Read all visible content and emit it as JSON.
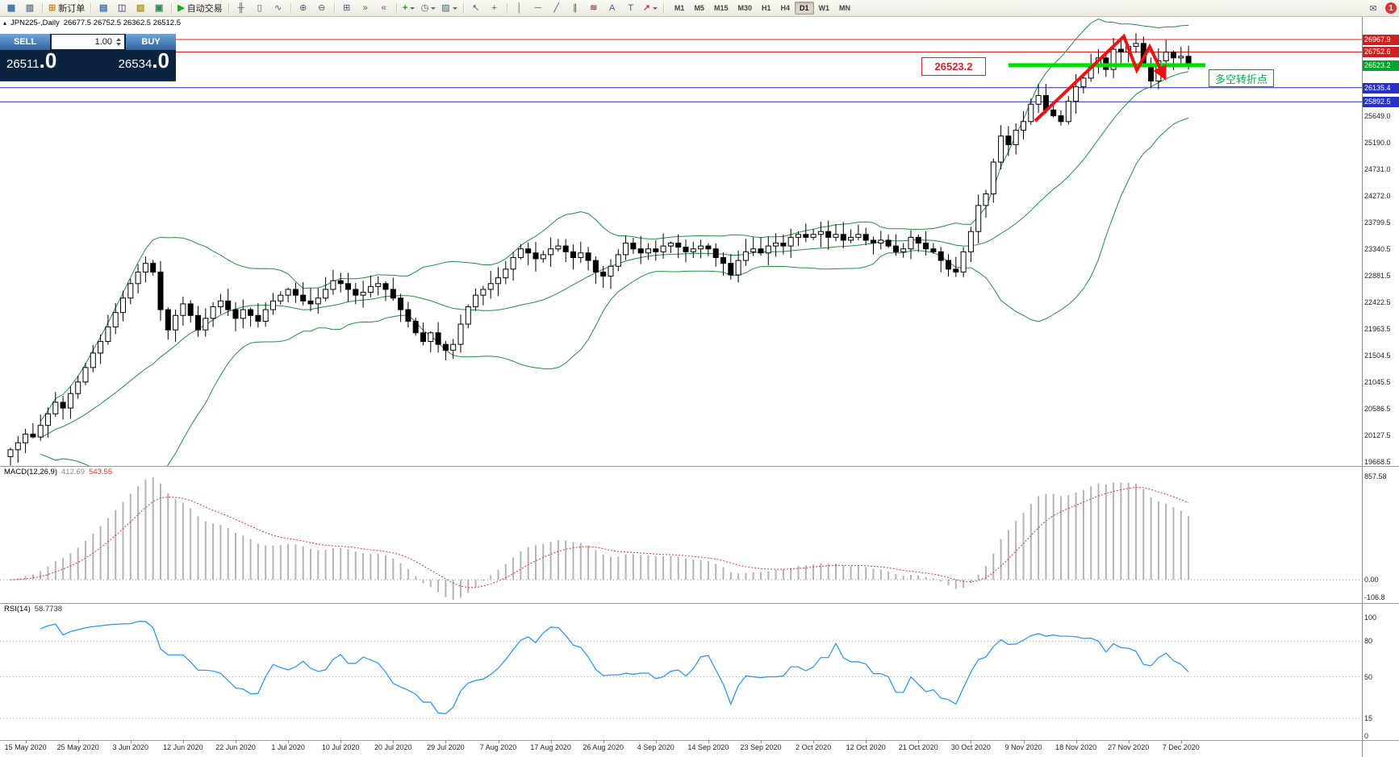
{
  "toolbar": {
    "items": [
      {
        "name": "new-chart-icon",
        "glyph": "▦",
        "glyph_color": "#3a6ea5"
      },
      {
        "name": "chart-profiles-icon",
        "glyph": "▥",
        "glyph_color": "#6a7a8a"
      },
      {
        "name": "separator"
      },
      {
        "name": "new-order-button",
        "glyph": "⊞",
        "glyph_color": "#c8881e",
        "label": "新订单"
      },
      {
        "name": "separator"
      },
      {
        "name": "market-watch-icon",
        "glyph": "▤",
        "glyph_color": "#3a6ea5"
      },
      {
        "name": "data-window-icon",
        "glyph": "◫",
        "glyph_color": "#7a5aa0"
      },
      {
        "name": "navigator-icon",
        "glyph": "▧",
        "glyph_color": "#b09a28"
      },
      {
        "name": "terminal-icon",
        "glyph": "▣",
        "glyph_color": "#2f8a56"
      },
      {
        "name": "separator"
      },
      {
        "name": "auto-trading-button",
        "glyph": "▶",
        "glyph_color": "#23a028",
        "label": "自动交易"
      },
      {
        "name": "separator"
      },
      {
        "name": "bar-chart-icon",
        "glyph": "╫"
      },
      {
        "name": "candlestick-chart-icon",
        "glyph": "▯"
      },
      {
        "name": "line-chart-icon",
        "glyph": "∿"
      },
      {
        "name": "separator"
      },
      {
        "name": "zoom-in-icon",
        "glyph": "⊕"
      },
      {
        "name": "zoom-out-icon",
        "glyph": "⊖"
      },
      {
        "name": "separator"
      },
      {
        "name": "tile-windows-icon",
        "glyph": "⊞"
      },
      {
        "name": "auto-scroll-icon",
        "glyph": "»"
      },
      {
        "name": "chart-shift-icon",
        "glyph": "«"
      },
      {
        "name": "separator"
      },
      {
        "name": "indicators-button",
        "glyph": "+",
        "glyph_color": "#1e8e1e",
        "caret": true
      },
      {
        "name": "periods-button",
        "glyph": "◷",
        "caret": true
      },
      {
        "name": "templates-button",
        "glyph": "▨",
        "caret": true
      },
      {
        "name": "separator"
      },
      {
        "name": "cursor-icon",
        "glyph": "↖"
      },
      {
        "name": "crosshair-icon",
        "glyph": "+"
      },
      {
        "name": "separator"
      },
      {
        "name": "vertical-line-icon",
        "glyph": "│"
      },
      {
        "name": "horizontal-line-icon",
        "glyph": "─"
      },
      {
        "name": "trendline-icon",
        "glyph": "╱"
      },
      {
        "name": "channel-icon",
        "glyph": "∥"
      },
      {
        "name": "fibonacci-icon",
        "glyph": "≋",
        "glyph_color": "#b04a4a"
      },
      {
        "name": "text-icon",
        "glyph": "A"
      },
      {
        "name": "label-icon",
        "glyph": "T"
      },
      {
        "name": "arrows-icon",
        "glyph": "↗",
        "glyph_color": "#b04a4a",
        "caret": true
      },
      {
        "name": "separator"
      }
    ],
    "timeframes": [
      "M1",
      "M5",
      "M15",
      "M30",
      "H1",
      "H4",
      "D1",
      "W1",
      "MN"
    ],
    "active_timeframe": "D1",
    "chat_glyph": "✉",
    "notification_count": "1"
  },
  "chart": {
    "collapse_glyph": "▴",
    "symbol_period": "JPN225-,Daily",
    "ohlc": "26677.5 26752.5 26362.5 26512.5",
    "price_flag": "26523.2",
    "note_flag": "多空转折点"
  },
  "trade_panel": {
    "sell_label": "SELL",
    "buy_label": "BUY",
    "volume": "1.00",
    "sell_price": {
      "main": "26511",
      "big": ".0"
    },
    "buy_price": {
      "main": "26534",
      "big": ".0"
    }
  },
  "macd_panel": {
    "label": "MACD(12,26,9)",
    "value_main": "412.69",
    "value_signal": "543.55",
    "axis_max": "857.58",
    "axis_zero": "0.00",
    "axis_min": "-106.8"
  },
  "rsi_panel": {
    "label": "RSI(14)",
    "value": "58.7738",
    "axis_labels": [
      "100",
      "80",
      "50",
      "15",
      "0"
    ],
    "level_lines": [
      80,
      50,
      15
    ]
  },
  "chart_data": {
    "type": "candlestick",
    "symbol": "JPN225",
    "timeframe": "Daily",
    "current_ohlc": {
      "open": 26677.5,
      "high": 26752.5,
      "low": 26362.5,
      "close": 26512.5
    },
    "price_levels": [
      {
        "price": 26967.9,
        "label": "26967.9",
        "color": "#e02020",
        "tag": "#d22020",
        "full_width": true
      },
      {
        "price": 26752.6,
        "label": "26752.6",
        "color": "#e02020",
        "tag": "#d22020",
        "full_width": true
      },
      {
        "price": 26523.2,
        "label": "26523.2",
        "color": "#00dd00",
        "tag": "#00a42a",
        "full_width": false,
        "thick": true
      },
      {
        "price": 26135.4,
        "label": "26135.4",
        "color": "#2828cc",
        "tag": "#2830cc",
        "full_width": true
      },
      {
        "price": 25892.5,
        "label": "25892.5",
        "color": "#2828cc",
        "tag": "#2830cc",
        "full_width": true
      }
    ],
    "scale_labels": [
      "25649.0",
      "25190.0",
      "24731.0",
      "24272.0",
      "23799.5",
      "23340.5",
      "22881.5",
      "22422.5",
      "21963.5",
      "21504.5",
      "21045.5",
      "20586.5",
      "20127.5",
      "19668.5"
    ],
    "x_labels": [
      "15 May 2020",
      "25 May 2020",
      "3 Jun 2020",
      "12 Jun 2020",
      "22 Jun 2020",
      "1 Jul 2020",
      "10 Jul 2020",
      "20 Jul 2020",
      "29 Jul 2020",
      "7 Aug 2020",
      "17 Aug 2020",
      "26 Aug 2020",
      "4 Sep 2020",
      "14 Sep 2020",
      "23 Sep 2020",
      "2 Oct 2020",
      "12 Oct 2020",
      "21 Oct 2020",
      "30 Oct 2020",
      "9 Nov 2020",
      "18 Nov 2020",
      "27 Nov 2020",
      "7 Dec 2020"
    ],
    "indicators": {
      "bollinger_period": 20,
      "bollinger_deviation": 2,
      "macd": [
        12,
        26,
        9
      ],
      "rsi_period": 14
    },
    "closes": [
      19880,
      20000,
      20150,
      20100,
      20300,
      20500,
      20700,
      20600,
      20850,
      21050,
      21300,
      21550,
      21750,
      22000,
      22250,
      22500,
      22750,
      22950,
      23100,
      22950,
      22300,
      21950,
      22200,
      22400,
      22200,
      21950,
      22150,
      22350,
      22450,
      22300,
      22150,
      22300,
      22200,
      22100,
      22300,
      22450,
      22550,
      22650,
      22550,
      22450,
      22400,
      22500,
      22650,
      22800,
      22750,
      22650,
      22550,
      22600,
      22700,
      22750,
      22650,
      22500,
      22300,
      22100,
      21900,
      21750,
      21900,
      21700,
      21600,
      21700,
      22050,
      22350,
      22550,
      22650,
      22750,
      22850,
      23000,
      23200,
      23350,
      23280,
      23180,
      23250,
      23350,
      23400,
      23300,
      23200,
      23280,
      23150,
      22950,
      22880,
      23050,
      23250,
      23450,
      23350,
      23280,
      23350,
      23300,
      23400,
      23450,
      23380,
      23300,
      23350,
      23400,
      23350,
      23200,
      23100,
      22900,
      23150,
      23300,
      23350,
      23280,
      23400,
      23450,
      23400,
      23550,
      23600,
      23550,
      23600,
      23650,
      23550,
      23600,
      23500,
      23550,
      23600,
      23500,
      23450,
      23500,
      23400,
      23300,
      23350,
      23550,
      23450,
      23350,
      23300,
      23150,
      23000,
      22950,
      23300,
      23650,
      24100,
      24300,
      24850,
      25300,
      25150,
      25400,
      25550,
      25850,
      26000,
      25750,
      25650,
      25550,
      25900,
      26150,
      26300,
      26550,
      26650,
      26450,
      26800,
      26750,
      26850,
      26900,
      26550,
      26250,
      26600,
      26750,
      26650,
      26677.5,
      26512.5
    ]
  }
}
